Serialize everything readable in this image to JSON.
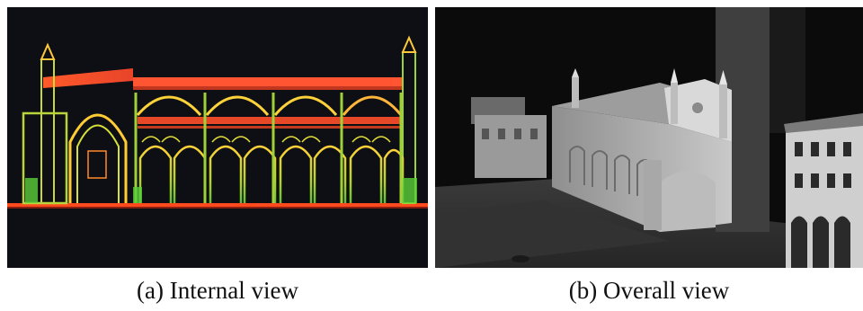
{
  "figure": {
    "panel_a": {
      "caption": "(a) Internal view"
    },
    "panel_b": {
      "caption": "(b) Overall view"
    }
  }
}
